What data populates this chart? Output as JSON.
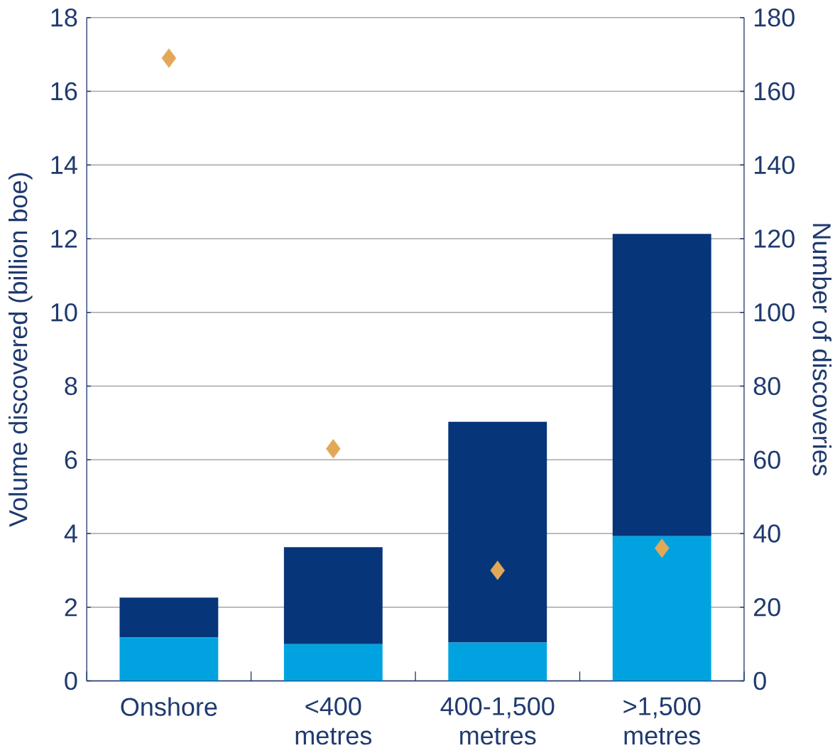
{
  "chart_data": {
    "type": "bar",
    "stacked": true,
    "categories": [
      "Onshore",
      "<400 metres",
      "400-1,500 metres",
      ">1,500 metres"
    ],
    "ylabel": "Volume discovered (billion boe)",
    "y2label": "Number of discoveries",
    "ylim": [
      0,
      18
    ],
    "yticks": [
      0,
      2,
      4,
      6,
      8,
      10,
      12,
      14,
      16,
      18
    ],
    "y2lim": [
      0,
      180
    ],
    "y2ticks": [
      0,
      20,
      40,
      60,
      80,
      100,
      120,
      140,
      160,
      180
    ],
    "grid": "y",
    "series": [
      {
        "color": "#00a3e0",
        "values": [
          1.18,
          1.0,
          1.04,
          3.93
        ]
      },
      {
        "color": "#06357a",
        "values": [
          1.08,
          2.63,
          5.99,
          8.2
        ]
      },
      {
        "type": "scatter",
        "axis": "y2",
        "marker": "diamond",
        "color": "#e3a857",
        "values": [
          169,
          63,
          30,
          36
        ]
      }
    ]
  }
}
